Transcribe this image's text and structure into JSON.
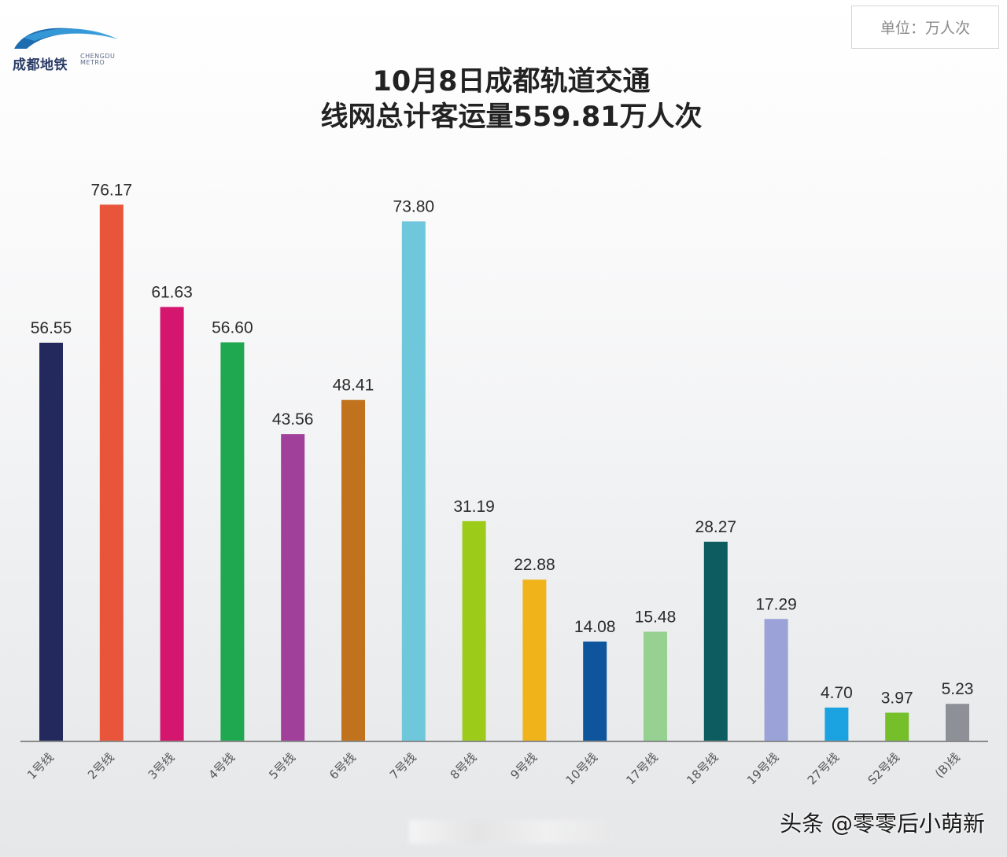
{
  "logo": {
    "name": "成都地铁",
    "english": "CHENGDU METRO",
    "colors": {
      "arc_dark": "#1e6cb0",
      "arc_light": "#3aa0dd"
    }
  },
  "unit_label": "单位：万人次",
  "title_line1": "10月8日成都轨道交通",
  "title_line2": "线网总计客运量559.81万人次",
  "watermark": "头条 @零零后小萌新",
  "chart_data": {
    "type": "bar",
    "categories": [
      "1号线",
      "2号线",
      "3号线",
      "4号线",
      "5号线",
      "6号线",
      "7号线",
      "8号线",
      "9号线",
      "10号线",
      "17号线",
      "18号线",
      "19号线",
      "27号线",
      "S2号线",
      "(B)线"
    ],
    "values": [
      56.55,
      76.17,
      61.63,
      56.6,
      43.56,
      48.41,
      73.8,
      31.19,
      22.88,
      14.08,
      15.48,
      28.27,
      17.29,
      4.7,
      3.97,
      5.23
    ],
    "value_labels": [
      "56.55",
      "76.17",
      "61.63",
      "56.60",
      "43.56",
      "48.41",
      "73.80",
      "31.19",
      "22.88",
      "14.08",
      "15.48",
      "28.27",
      "17.29",
      "4.70",
      "3.97",
      "5.23"
    ],
    "colors": [
      "#23295c",
      "#e8553a",
      "#d4166e",
      "#1fa84f",
      "#a0409a",
      "#c0721c",
      "#6fc7dc",
      "#9ccb1a",
      "#f0b31a",
      "#0f559e",
      "#96d191",
      "#0d5c5f",
      "#9aa2d8",
      "#1aa3e0",
      "#74bf2a",
      "#8d9097"
    ],
    "ylim": [
      0,
      80
    ],
    "grid": false,
    "legend": "none"
  }
}
